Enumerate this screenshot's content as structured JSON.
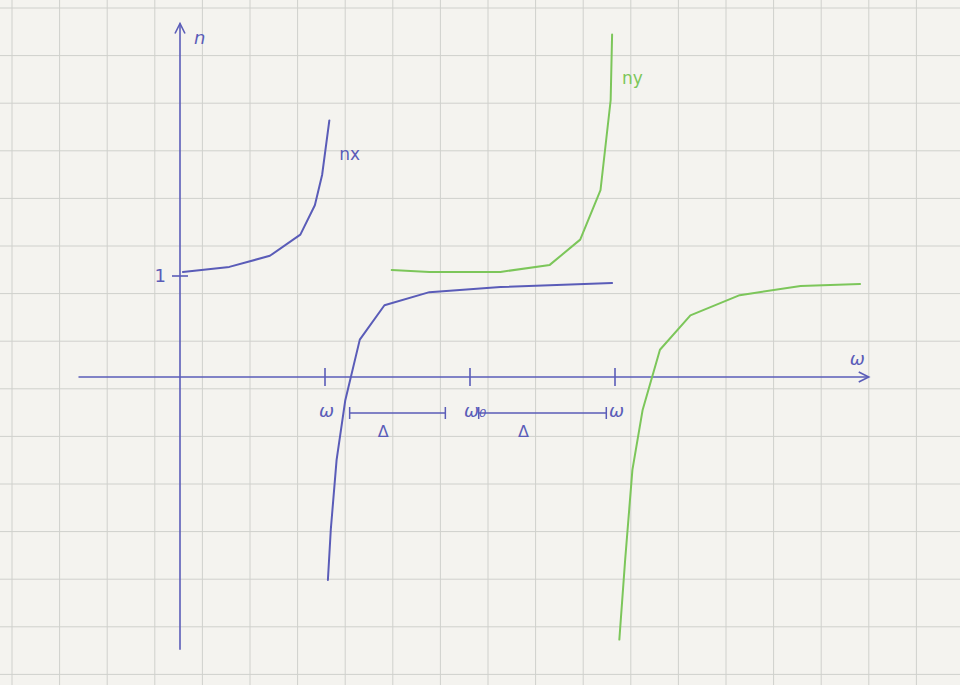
{
  "chart_data": {
    "type": "line",
    "x_label": "ω",
    "y_label": "n",
    "xlim": [
      -0.7,
      4.75
    ],
    "ylim": [
      -2.7,
      3.5
    ],
    "xticks": [
      {
        "value": 1,
        "label": "ω"
      },
      {
        "value": 2,
        "label": "ω₀"
      },
      {
        "value": 3,
        "label": "ω"
      }
    ],
    "yticks": [
      1
    ],
    "grid": false,
    "series": [
      {
        "name": "nx",
        "color": "#5a5cb8",
        "x": [
          0.02,
          0.34,
          0.62,
          0.83,
          0.93,
          0.98,
          1.03,
          1.025,
          1.02,
          1.04,
          1.08,
          1.14,
          1.24,
          1.41,
          1.72,
          2.21,
          2.98
        ],
        "values": [
          1.04,
          1.09,
          1.2,
          1.41,
          1.7,
          2.0,
          2.54,
          null,
          -2.01,
          -1.51,
          -0.82,
          -0.23,
          0.37,
          0.71,
          0.84,
          0.89,
          0.93
        ]
      },
      {
        "name": "ny",
        "color": "#7cc65a",
        "x": [
          1.46,
          1.72,
          2.21,
          2.55,
          2.76,
          2.9,
          2.97,
          2.98,
          3.0,
          3.03,
          3.07,
          3.12,
          3.19,
          3.31,
          3.52,
          3.86,
          4.28,
          4.69
        ],
        "values": [
          1.06,
          1.04,
          1.04,
          1.11,
          1.36,
          1.85,
          2.74,
          3.39,
          null,
          -2.6,
          -1.81,
          -0.92,
          -0.33,
          0.27,
          0.61,
          0.81,
          0.9,
          0.92
        ]
      }
    ],
    "annotations": [
      {
        "text": "Δ",
        "from": 1.17,
        "to": 1.83
      },
      {
        "text": "Δ",
        "from": 2.06,
        "to": 2.94
      }
    ]
  }
}
